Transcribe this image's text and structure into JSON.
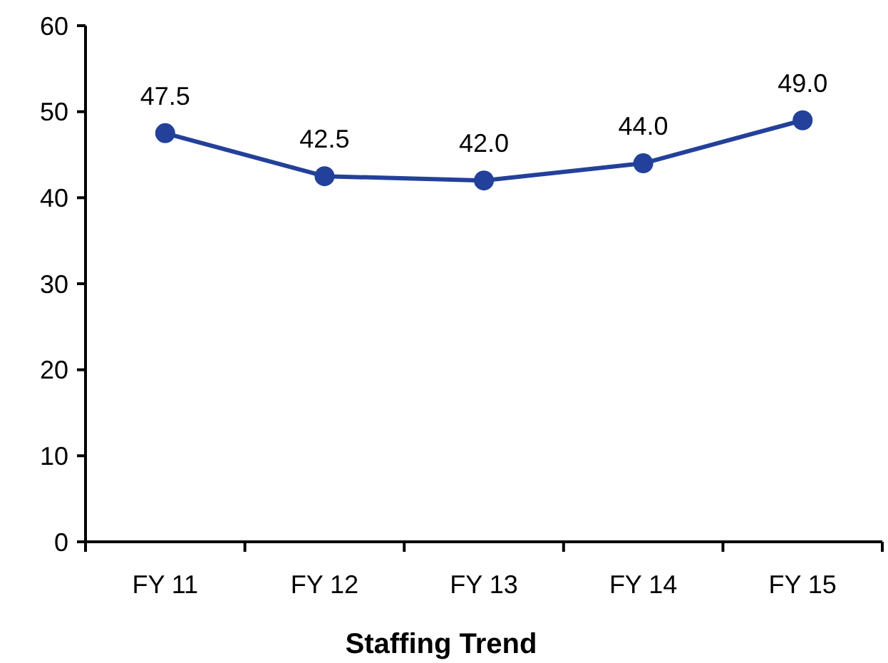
{
  "chart_data": {
    "type": "line",
    "xlabel": "Staffing Trend",
    "categories": [
      "FY 11",
      "FY 12",
      "FY 13",
      "FY 14",
      "FY 15"
    ],
    "series": [
      {
        "color": "#23409a",
        "values": [
          47.5,
          42.5,
          42.0,
          44.0,
          49.0
        ]
      }
    ],
    "value_labels": [
      "47.5",
      "42.5",
      "42.0",
      "44.0",
      "49.0"
    ],
    "ylim": [
      0,
      60
    ],
    "yticks": [
      0,
      10,
      20,
      30,
      40,
      50,
      60
    ],
    "grid": false,
    "marker": "circle",
    "line_style": "solid"
  }
}
